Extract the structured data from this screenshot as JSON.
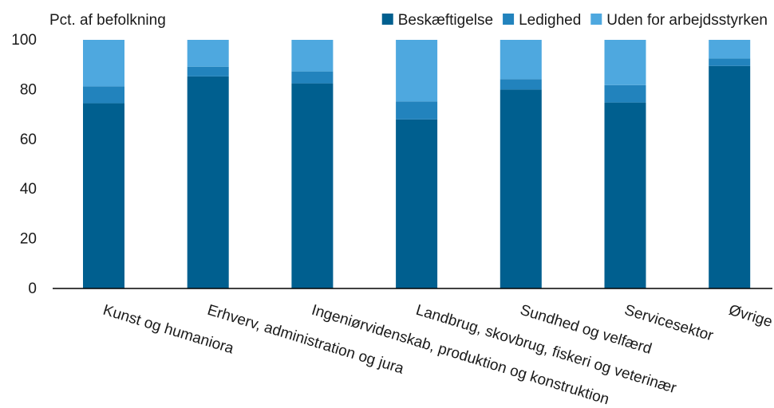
{
  "chart_data": {
    "type": "bar",
    "stacked": true,
    "ylabel": "Pct. af befolkning",
    "ylim": [
      0,
      100
    ],
    "yticks": [
      0,
      20,
      40,
      60,
      80,
      100
    ],
    "grid": false,
    "legend_position": "top-right",
    "categories": [
      "Kunst og humaniora",
      "Erhverv, administration og jura",
      "Ingeniørvidenskab, produktion og konstruktion",
      "Landbrug, skovbrug, fiskeri og veterinær",
      "Sundhed og velfærd",
      "Servicesektor",
      "Øvrige"
    ],
    "series": [
      {
        "name": "Beskæftigelse",
        "color": "#005f8f",
        "values": [
          74.5,
          85.3,
          82.5,
          68,
          80,
          74.8,
          89.5
        ]
      },
      {
        "name": "Ledighed",
        "color": "#2283bd",
        "values": [
          6.8,
          3.9,
          4.8,
          7.2,
          4.2,
          7,
          3
        ]
      },
      {
        "name": "Uden for arbejdsstyrken",
        "color": "#4ea8df",
        "values": [
          18.7,
          10.8,
          12.7,
          24.8,
          15.8,
          18.2,
          7.5
        ]
      }
    ]
  }
}
